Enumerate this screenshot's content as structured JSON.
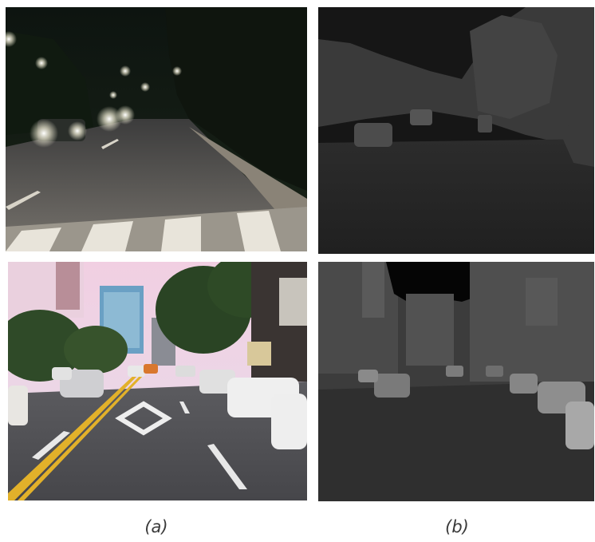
{
  "captions": {
    "a": "(a)",
    "b": "(b)"
  },
  "panels": [
    {
      "column": "a",
      "row": "top",
      "scene": "night-road-rgb"
    },
    {
      "column": "b",
      "row": "top",
      "scene": "night-road-thermal"
    },
    {
      "column": "a",
      "row": "bottom",
      "scene": "day-street-rgb"
    },
    {
      "column": "b",
      "row": "bottom",
      "scene": "day-street-thermal"
    }
  ]
}
